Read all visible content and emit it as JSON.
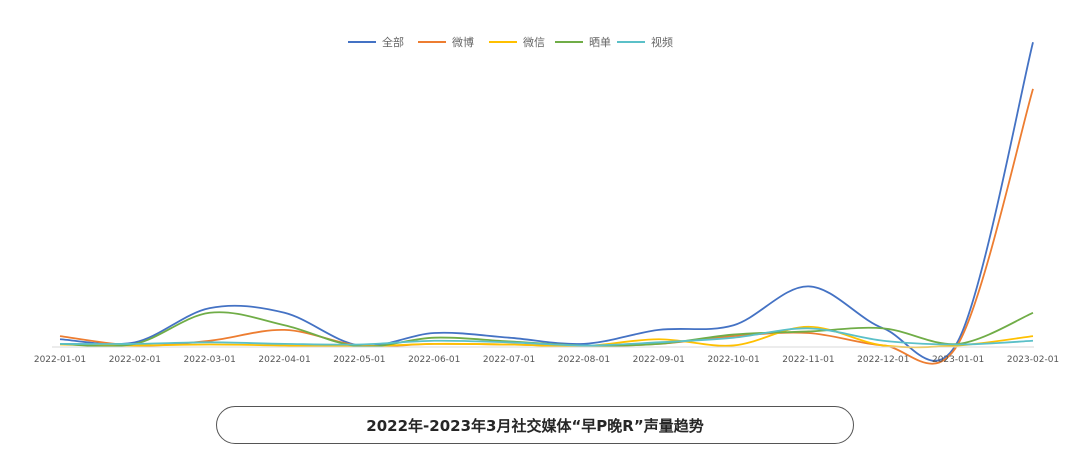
{
  "chart_data": {
    "type": "line",
    "title": "2022年-2023年3月社交媒体“早P晚R”声量趋势",
    "xlabel": "",
    "ylabel": "",
    "legend_position": "top",
    "grid": false,
    "ylim": [
      0,
      1000
    ],
    "x": [
      "2022-01-01",
      "2022-02-01",
      "2022-03-01",
      "2022-04-01",
      "2022-05-01",
      "2022-06-01",
      "2022-07-01",
      "2022-08-01",
      "2022-09-01",
      "2022-10-01",
      "2022-11-01",
      "2022-12-01",
      "2023-01-01",
      "2023-02-01"
    ],
    "series": [
      {
        "name": "全部",
        "color": "#4472c4",
        "values": [
          25,
          15,
          125,
          110,
          5,
          45,
          30,
          10,
          55,
          70,
          195,
          60,
          20,
          980
        ]
      },
      {
        "name": "微博",
        "color": "#ed7d31",
        "values": [
          35,
          5,
          20,
          55,
          5,
          10,
          8,
          3,
          10,
          35,
          45,
          5,
          10,
          830
        ]
      },
      {
        "name": "微信",
        "color": "#ffc000",
        "values": [
          8,
          5,
          8,
          5,
          2,
          10,
          8,
          3,
          25,
          5,
          65,
          5,
          5,
          35
        ]
      },
      {
        "name": "晒单",
        "color": "#70ad47",
        "values": [
          10,
          10,
          110,
          70,
          2,
          30,
          18,
          5,
          10,
          40,
          50,
          60,
          10,
          110
        ]
      },
      {
        "name": "视频",
        "color": "#5bc0c8",
        "values": [
          10,
          10,
          15,
          10,
          8,
          20,
          15,
          5,
          15,
          30,
          60,
          20,
          8,
          20
        ]
      }
    ]
  }
}
